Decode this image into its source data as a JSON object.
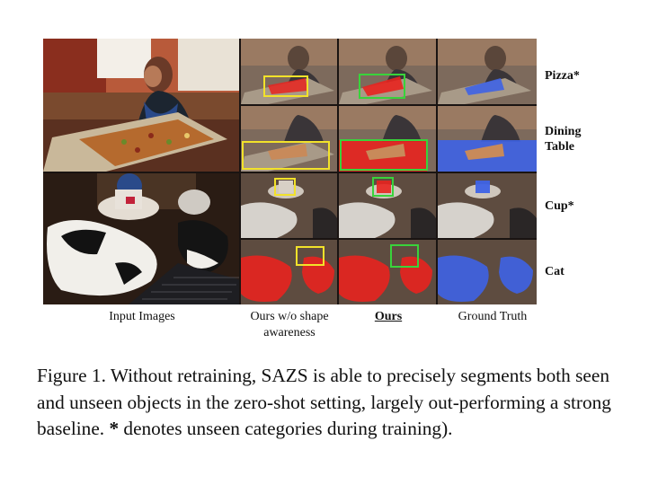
{
  "row_labels": [
    "Pizza*",
    "Dining Table",
    "Cup*",
    "Cat"
  ],
  "column_labels": [
    "Input Images",
    "Ours w/o shape awareness",
    "Ours",
    "Ground Truth"
  ],
  "caption": {
    "prefix": "Figure 1.  Without retraining, SAZS is able to precisely segments both seen and unseen objects in the zero-shot setting, largely out-performing a strong baseline.",
    "star": "*",
    "suffix": "denotes unseen categories during training)."
  },
  "colors": {
    "mask_prediction": "#e8231f",
    "mask_ground_truth": "#3e63e6",
    "box_baseline": "#f2e22a",
    "box_ours": "#39d33b"
  },
  "images": [
    {
      "name": "input-image-pizza-photo",
      "kind": "input-pizza"
    },
    {
      "name": "input-image-cat-photo",
      "kind": "input-cat"
    }
  ]
}
